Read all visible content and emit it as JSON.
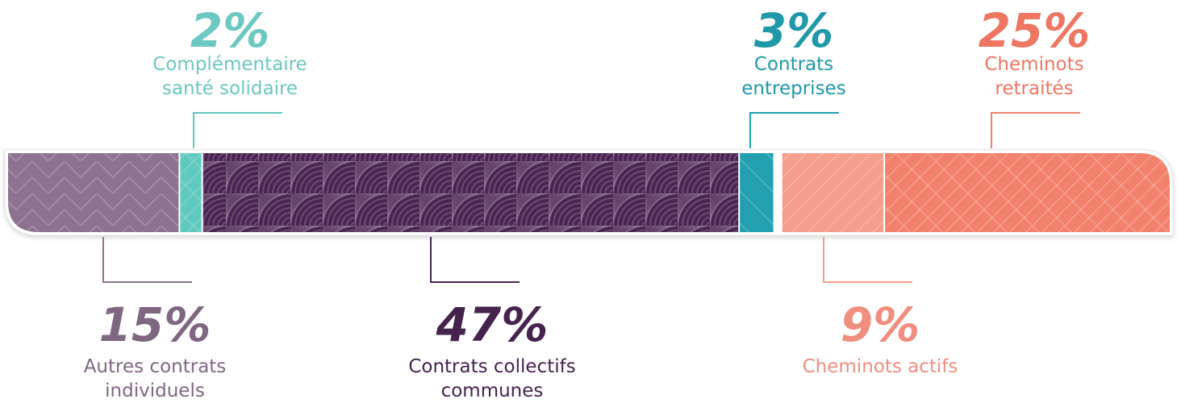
{
  "chart_data": {
    "type": "bar",
    "orientation": "horizontal-stacked",
    "unit": "%",
    "categories": [
      "Autres contrats individuels",
      "Complémentaire santé solidaire",
      "Contrats collectifs communes",
      "Contrats entreprises",
      "Cheminots actifs",
      "Cheminots retraités"
    ],
    "values": [
      15,
      2,
      47,
      3,
      9,
      25
    ],
    "labels": [
      "15%",
      "2%",
      "47%",
      "3%",
      "9%",
      "25%"
    ],
    "label_lines": [
      [
        "Autres contrats",
        "individuels"
      ],
      [
        "Complémentaire",
        "santé solidaire"
      ],
      [
        "Contrats collectifs",
        "communes"
      ],
      [
        "Contrats",
        "entreprises"
      ],
      [
        "Cheminots actifs"
      ],
      [
        "Cheminots",
        "retraités"
      ]
    ],
    "label_side": [
      "bottom",
      "top",
      "bottom",
      "top",
      "bottom",
      "top"
    ],
    "colors": [
      "#8e7390",
      "#5fc9bf",
      "#4a2452",
      "#22a0b0",
      "#f49f8c",
      "#f2816c"
    ],
    "label_colors": [
      "#7f6782",
      "#6cc8c0",
      "#45234d",
      "#1f98a8",
      "#f08e80",
      "#ee7763"
    ],
    "group_gap_after": [
      3
    ],
    "xlim": [
      0,
      101
    ]
  }
}
